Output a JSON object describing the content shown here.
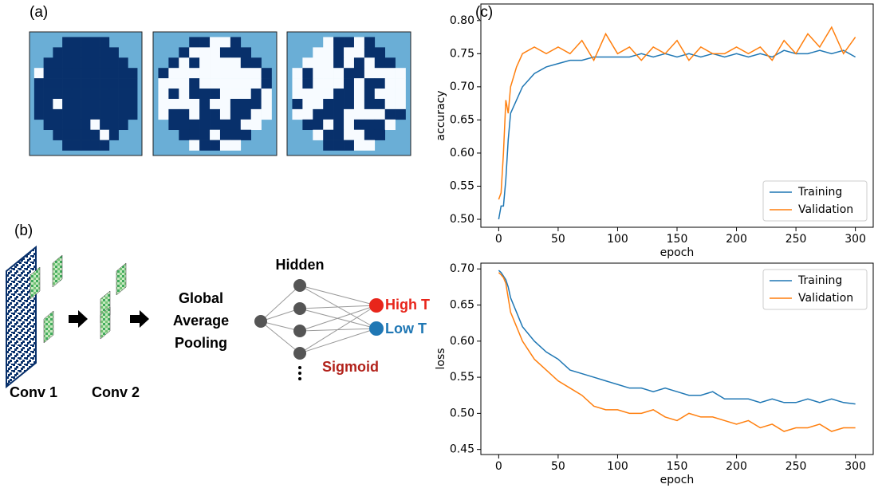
{
  "panels": {
    "a": "(a)",
    "b": "(b)",
    "c": "(c)"
  },
  "diagram": {
    "conv1": "Conv 1",
    "conv2": "Conv 2",
    "pooling": [
      "Global",
      "Average",
      "Pooling"
    ],
    "hidden": "Hidden",
    "high": "High T",
    "low": "Low T",
    "sigmoid": "Sigmoid"
  },
  "chart_data": [
    {
      "type": "line",
      "ylabel": "accuracy",
      "xlabel": "epoch",
      "legend": "lower right",
      "x": [
        0,
        2,
        4,
        6,
        8,
        10,
        15,
        20,
        30,
        40,
        50,
        60,
        70,
        80,
        90,
        100,
        110,
        120,
        130,
        140,
        150,
        160,
        170,
        180,
        190,
        200,
        210,
        220,
        230,
        240,
        250,
        260,
        270,
        280,
        290,
        300
      ],
      "series": [
        {
          "name": "Training",
          "color": "#1f77b4",
          "values": [
            0.5,
            0.52,
            0.52,
            0.56,
            0.62,
            0.66,
            0.68,
            0.7,
            0.72,
            0.73,
            0.735,
            0.74,
            0.74,
            0.745,
            0.745,
            0.745,
            0.745,
            0.75,
            0.745,
            0.75,
            0.745,
            0.75,
            0.745,
            0.75,
            0.745,
            0.75,
            0.745,
            0.75,
            0.745,
            0.755,
            0.75,
            0.75,
            0.755,
            0.75,
            0.755,
            0.745
          ]
        },
        {
          "name": "Validation",
          "color": "#ff7f0e",
          "values": [
            0.53,
            0.54,
            0.6,
            0.68,
            0.66,
            0.7,
            0.73,
            0.75,
            0.76,
            0.75,
            0.76,
            0.75,
            0.77,
            0.74,
            0.78,
            0.75,
            0.76,
            0.74,
            0.76,
            0.75,
            0.77,
            0.74,
            0.76,
            0.75,
            0.75,
            0.76,
            0.75,
            0.76,
            0.74,
            0.77,
            0.75,
            0.78,
            0.76,
            0.79,
            0.75,
            0.775
          ]
        }
      ],
      "xlim": [
        -15,
        315
      ],
      "xticks": [
        0,
        50,
        100,
        150,
        200,
        250,
        300
      ],
      "ylim": [
        0.488,
        0.825
      ],
      "yticks": [
        {
          "value": 0.5,
          "label": "0.50"
        },
        0.55,
        {
          "value": 0.6,
          "label": "0.60"
        },
        0.65,
        {
          "value": 0.7,
          "label": "0.70"
        },
        0.75,
        {
          "value": 0.8,
          "label": "0.80"
        }
      ]
    },
    {
      "type": "line",
      "ylabel": "loss",
      "xlabel": "epoch",
      "legend": "upper right",
      "x": [
        0,
        2,
        4,
        6,
        8,
        10,
        15,
        20,
        30,
        40,
        50,
        60,
        70,
        80,
        90,
        100,
        110,
        120,
        130,
        140,
        150,
        160,
        170,
        180,
        190,
        200,
        210,
        220,
        230,
        240,
        250,
        260,
        270,
        280,
        290,
        300
      ],
      "series": [
        {
          "name": "Training",
          "color": "#1f77b4",
          "values": [
            0.698,
            0.695,
            0.69,
            0.685,
            0.675,
            0.66,
            0.64,
            0.62,
            0.6,
            0.585,
            0.575,
            0.56,
            0.555,
            0.55,
            0.545,
            0.54,
            0.535,
            0.535,
            0.53,
            0.535,
            0.53,
            0.525,
            0.525,
            0.53,
            0.52,
            0.52,
            0.52,
            0.515,
            0.52,
            0.515,
            0.515,
            0.52,
            0.515,
            0.52,
            0.515,
            0.513
          ]
        },
        {
          "name": "Validation",
          "color": "#ff7f0e",
          "values": [
            0.695,
            0.692,
            0.688,
            0.68,
            0.66,
            0.64,
            0.62,
            0.6,
            0.575,
            0.56,
            0.545,
            0.535,
            0.525,
            0.51,
            0.505,
            0.505,
            0.5,
            0.5,
            0.505,
            0.495,
            0.49,
            0.5,
            0.495,
            0.495,
            0.49,
            0.485,
            0.49,
            0.48,
            0.485,
            0.475,
            0.48,
            0.48,
            0.485,
            0.475,
            0.48,
            0.48
          ]
        }
      ],
      "xlim": [
        -15,
        315
      ],
      "xticks": [
        0,
        50,
        100,
        150,
        200,
        250,
        300
      ],
      "ylim": [
        0.443,
        0.708
      ],
      "yticks": [
        0.45,
        {
          "value": 0.5,
          "label": "0.50"
        },
        0.55,
        {
          "value": 0.6,
          "label": "0.60"
        },
        0.65,
        {
          "value": 0.7,
          "label": "0.70"
        }
      ]
    }
  ]
}
